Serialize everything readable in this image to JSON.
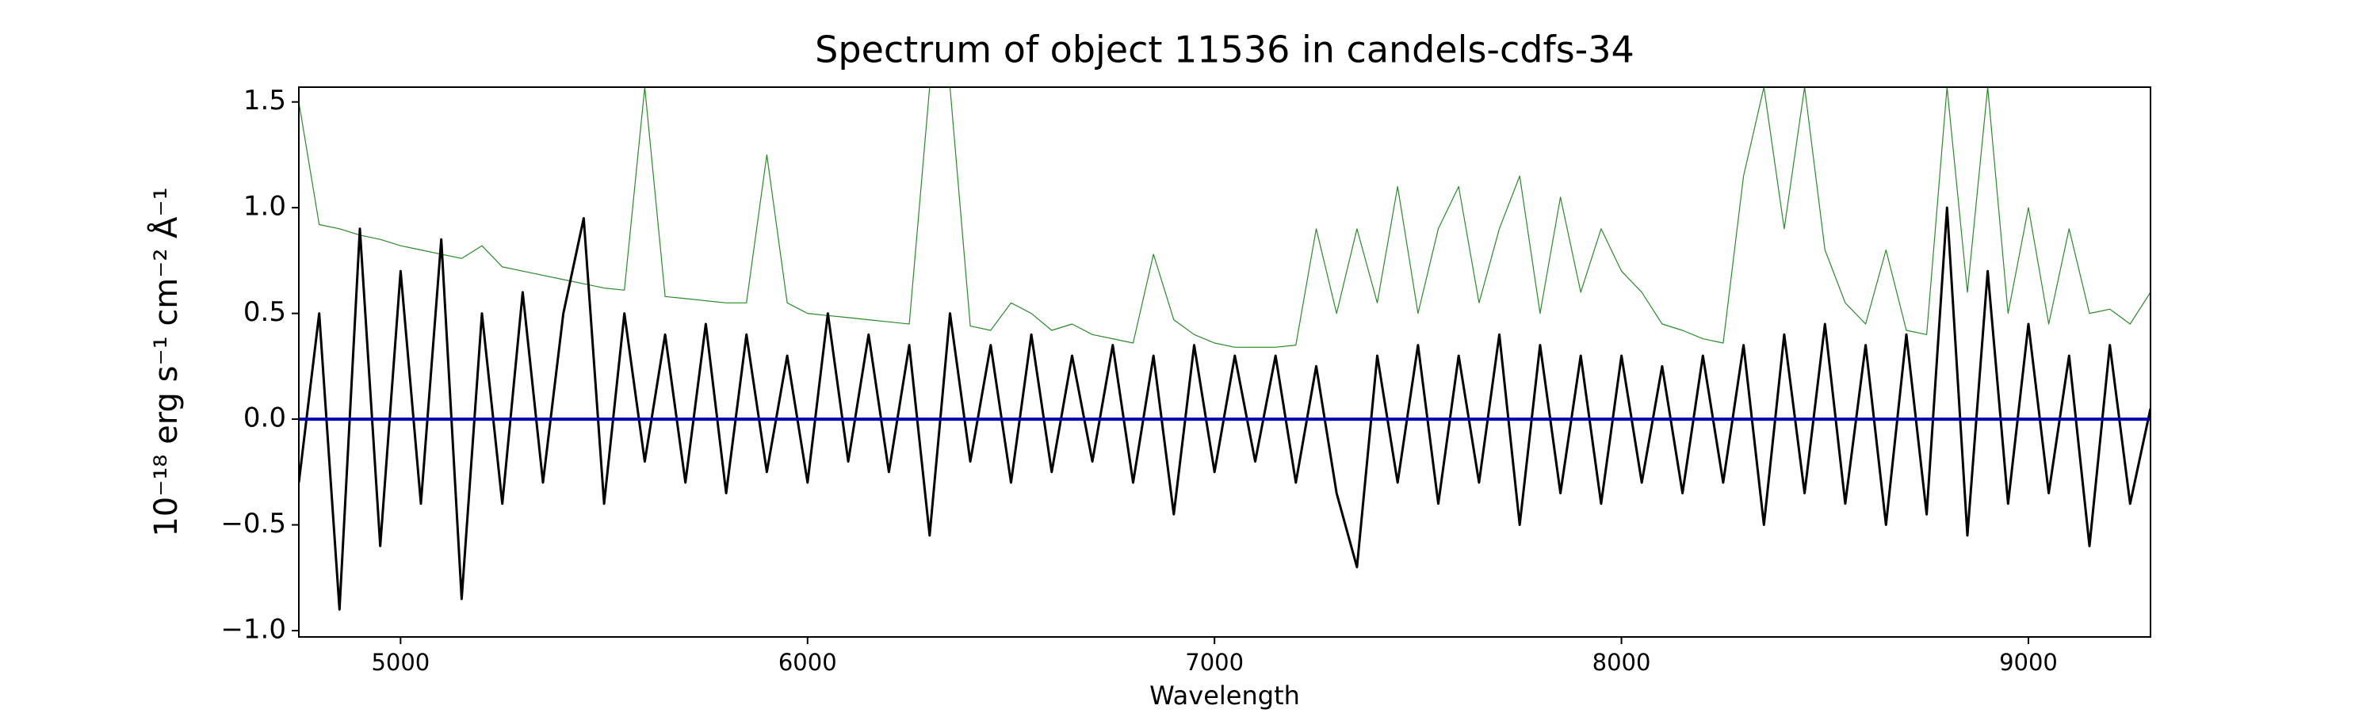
{
  "chart_data": {
    "type": "line",
    "title": "Spectrum of object 11536 in candels-cdfs-34",
    "x_label": "Wavelength",
    "y_label": "10⁻¹⁸ erg s⁻¹ cm⁻² Å⁻¹",
    "x": [
      4750,
      4800,
      4850,
      4900,
      4950,
      5000,
      5050,
      5100,
      5150,
      5200,
      5250,
      5300,
      5350,
      5400,
      5450,
      5500,
      5550,
      5600,
      5650,
      5700,
      5750,
      5800,
      5850,
      5900,
      5950,
      6000,
      6050,
      6100,
      6150,
      6200,
      6250,
      6300,
      6350,
      6400,
      6450,
      6500,
      6550,
      6600,
      6650,
      6700,
      6750,
      6800,
      6850,
      6900,
      6950,
      7000,
      7050,
      7100,
      7150,
      7200,
      7250,
      7300,
      7350,
      7400,
      7450,
      7500,
      7550,
      7600,
      7650,
      7700,
      7750,
      7800,
      7850,
      7900,
      7950,
      8000,
      8050,
      8100,
      8150,
      8200,
      8250,
      8300,
      8350,
      8400,
      8450,
      8500,
      8550,
      8600,
      8650,
      8700,
      8750,
      8800,
      8850,
      8900,
      8950,
      9000,
      9050,
      9100,
      9150,
      9200,
      9250,
      9300
    ],
    "series": [
      {
        "color": "#2a8a2a",
        "width": 1.2,
        "values": [
          1.5,
          0.92,
          0.9,
          0.87,
          0.85,
          0.82,
          0.8,
          0.78,
          0.76,
          0.82,
          0.72,
          0.7,
          0.68,
          0.66,
          0.64,
          0.62,
          0.61,
          1.57,
          0.58,
          0.57,
          0.56,
          0.55,
          0.55,
          1.25,
          0.55,
          0.5,
          0.49,
          0.48,
          0.47,
          0.46,
          0.45,
          1.57,
          1.57,
          0.44,
          0.42,
          0.55,
          0.5,
          0.42,
          0.45,
          0.4,
          0.38,
          0.36,
          0.78,
          0.47,
          0.4,
          0.36,
          0.34,
          0.34,
          0.34,
          0.35,
          0.9,
          0.5,
          0.9,
          0.55,
          1.1,
          0.5,
          0.9,
          1.1,
          0.55,
          0.9,
          1.15,
          0.5,
          1.05,
          0.6,
          0.9,
          0.7,
          0.6,
          0.45,
          0.42,
          0.38,
          0.36,
          1.15,
          1.57,
          0.9,
          1.57,
          0.8,
          0.55,
          0.45,
          0.8,
          0.42,
          0.4,
          1.57,
          0.6,
          1.57,
          0.5,
          1.0,
          0.45,
          0.9,
          0.5,
          0.52,
          0.45,
          0.6
        ]
      },
      {
        "color": "#000000",
        "width": 3,
        "values": [
          -0.3,
          0.5,
          -0.9,
          0.9,
          -0.6,
          0.7,
          -0.4,
          0.85,
          -0.85,
          0.5,
          -0.4,
          0.6,
          -0.3,
          0.5,
          0.95,
          -0.4,
          0.5,
          -0.2,
          0.4,
          -0.3,
          0.45,
          -0.35,
          0.4,
          -0.25,
          0.3,
          -0.3,
          0.5,
          -0.2,
          0.4,
          -0.25,
          0.35,
          -0.55,
          0.5,
          -0.2,
          0.35,
          -0.3,
          0.4,
          -0.25,
          0.3,
          -0.2,
          0.35,
          -0.3,
          0.3,
          -0.45,
          0.35,
          -0.25,
          0.3,
          -0.2,
          0.3,
          -0.3,
          0.25,
          -0.35,
          -0.7,
          0.3,
          -0.3,
          0.35,
          -0.4,
          0.3,
          -0.3,
          0.4,
          -0.5,
          0.35,
          -0.35,
          0.3,
          -0.4,
          0.3,
          -0.3,
          0.25,
          -0.35,
          0.3,
          -0.3,
          0.35,
          -0.5,
          0.4,
          -0.35,
          0.45,
          -0.4,
          0.35,
          -0.5,
          0.4,
          -0.45,
          1.0,
          -0.55,
          0.7,
          -0.4,
          0.45,
          -0.35,
          0.3,
          -0.6,
          0.35,
          -0.4,
          0.05
        ]
      },
      {
        "color": "#0000b0",
        "width": 4,
        "values": [
          0,
          0,
          0,
          0,
          0,
          0,
          0,
          0,
          0,
          0,
          0,
          0,
          0,
          0,
          0,
          0,
          0,
          0,
          0,
          0,
          0,
          0,
          0,
          0,
          0,
          0,
          0,
          0,
          0,
          0,
          0,
          0,
          0,
          0,
          0,
          0,
          0,
          0,
          0,
          0,
          0,
          0,
          0,
          0,
          0,
          0,
          0,
          0,
          0,
          0,
          0,
          0,
          0,
          0,
          0,
          0,
          0,
          0,
          0,
          0,
          0,
          0,
          0,
          0,
          0,
          0,
          0,
          0,
          0,
          0,
          0,
          0,
          0,
          0,
          0,
          0,
          0,
          0,
          0,
          0,
          0,
          0,
          0,
          0,
          0,
          0,
          0,
          0,
          0,
          0,
          0,
          0
        ]
      }
    ],
    "xlim": [
      4750,
      9300
    ],
    "xticks": [
      5000,
      6000,
      7000,
      8000,
      9000
    ],
    "ylim": [
      -1.03,
      1.57
    ],
    "yticks": [
      {
        "value": -1,
        "label": "−1.0"
      },
      {
        "value": -0.5,
        "label": "−0.5"
      },
      {
        "value": 0,
        "label": "0.0"
      },
      0.5,
      {
        "value": 1,
        "label": "1.0"
      },
      1.5
    ],
    "grid": false
  }
}
